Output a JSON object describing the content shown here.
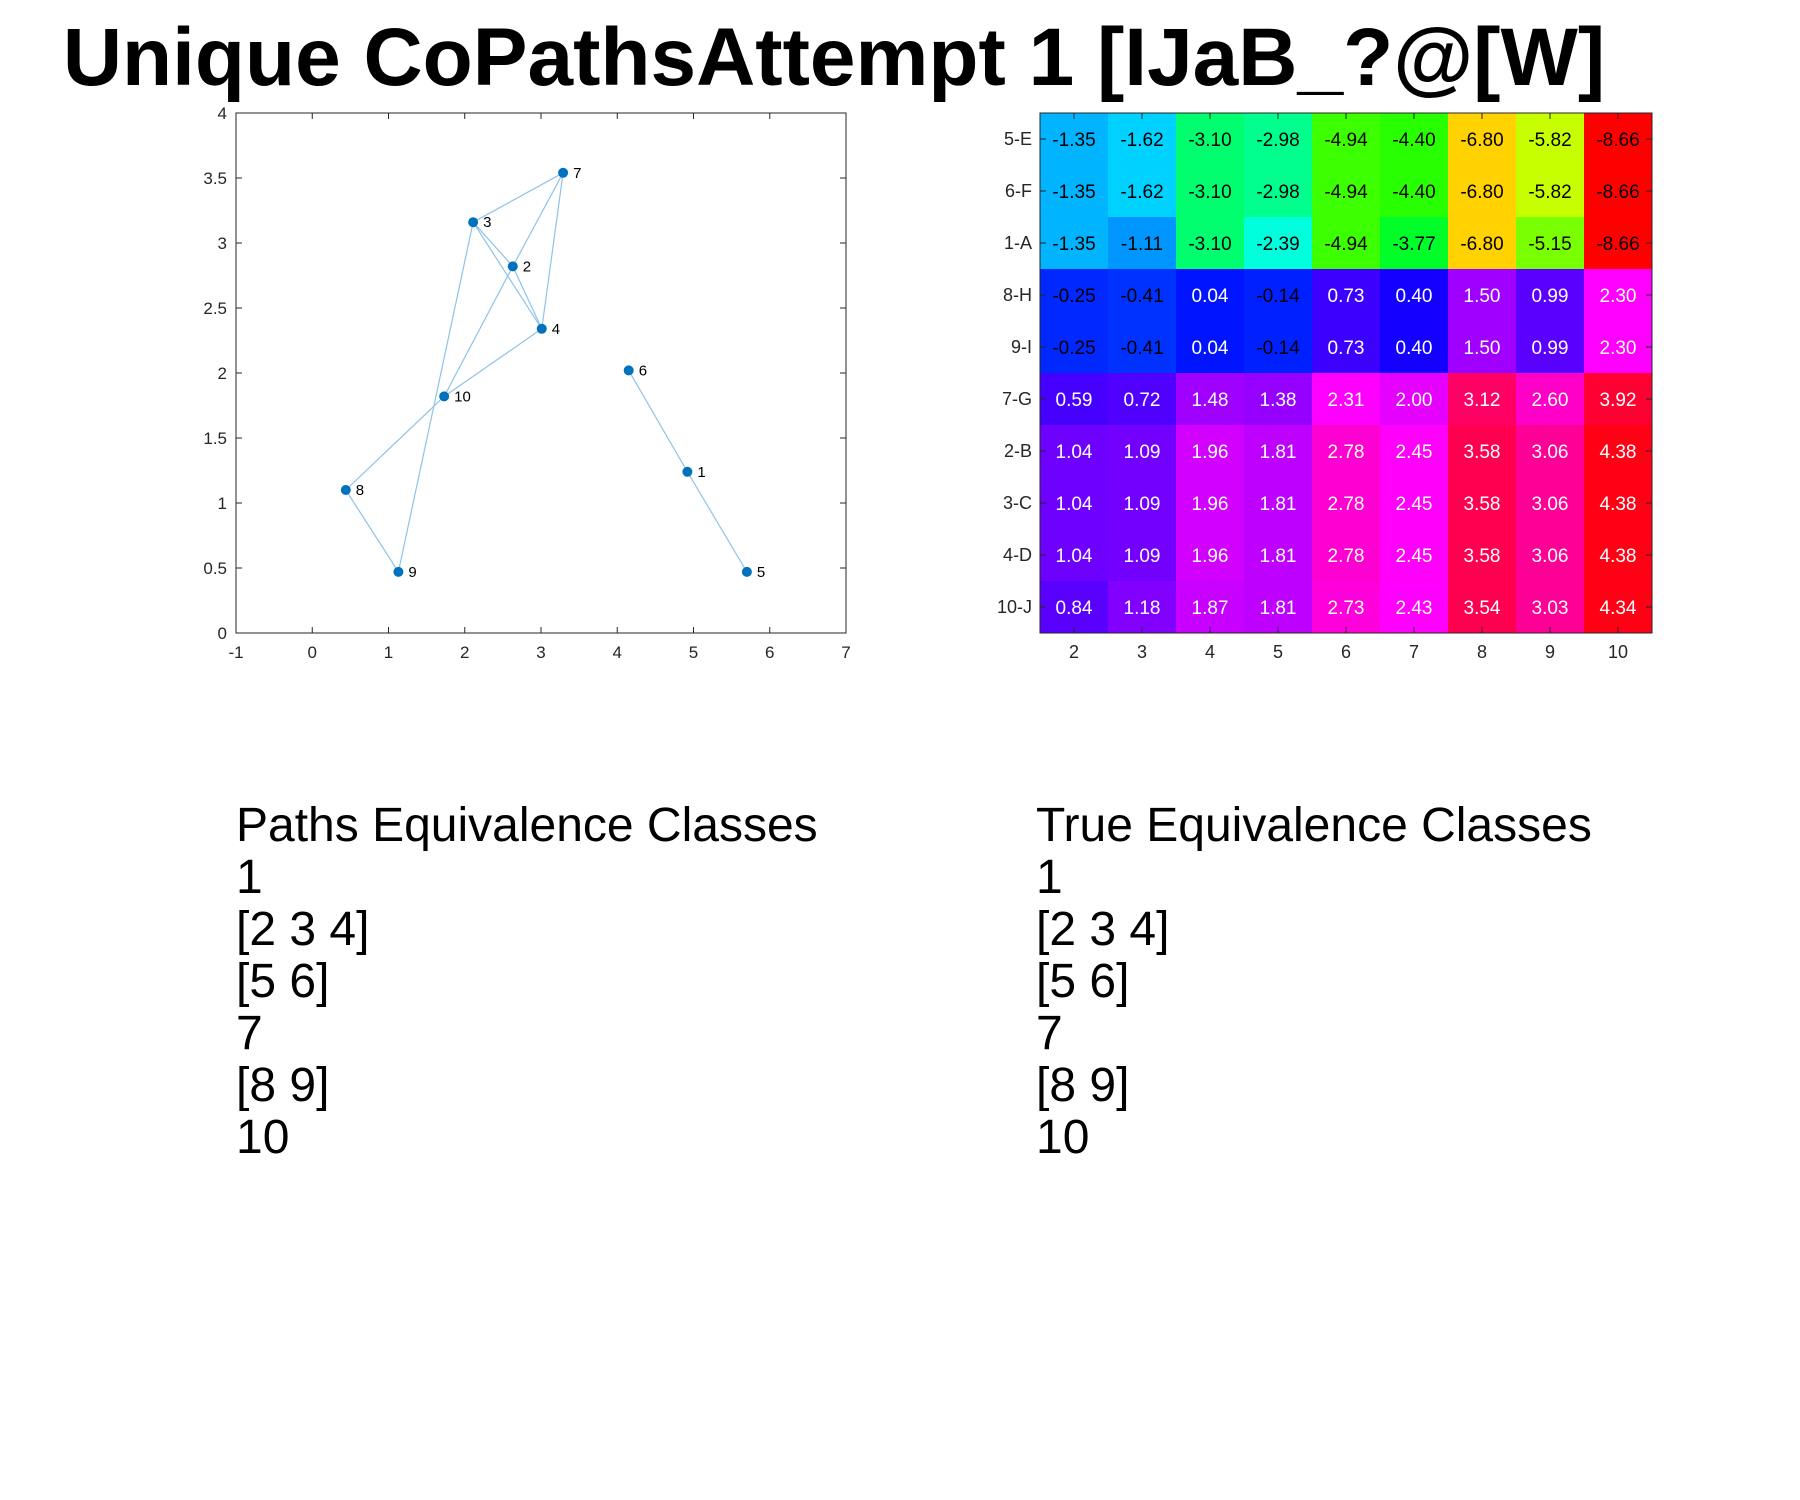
{
  "title": "Unique CoPathsAttempt 1 [IJaB_?@[W]",
  "chart_data": [
    {
      "type": "scatter",
      "xlim": [
        -1,
        7
      ],
      "ylim": [
        0,
        4
      ],
      "xticks": [
        "-1",
        "0",
        "1",
        "2",
        "3",
        "4",
        "5",
        "6",
        "7"
      ],
      "yticks": [
        "0",
        "0.5",
        "1",
        "1.5",
        "2",
        "2.5",
        "3",
        "3.5",
        "4"
      ],
      "grid": false,
      "point_color": "#0072BD",
      "edge_color": "#8EC3E8",
      "points": [
        {
          "label": "1",
          "x": 4.92,
          "y": 1.24
        },
        {
          "label": "2",
          "x": 2.63,
          "y": 2.82
        },
        {
          "label": "3",
          "x": 2.11,
          "y": 3.16
        },
        {
          "label": "4",
          "x": 3.01,
          "y": 2.34
        },
        {
          "label": "5",
          "x": 5.7,
          "y": 0.47
        },
        {
          "label": "6",
          "x": 4.15,
          "y": 2.02
        },
        {
          "label": "7",
          "x": 3.29,
          "y": 3.54
        },
        {
          "label": "8",
          "x": 0.44,
          "y": 1.1
        },
        {
          "label": "9",
          "x": 1.13,
          "y": 0.47
        },
        {
          "label": "10",
          "x": 1.73,
          "y": 1.82
        }
      ],
      "edges": [
        [
          "3",
          "7"
        ],
        [
          "3",
          "2"
        ],
        [
          "3",
          "4"
        ],
        [
          "7",
          "2"
        ],
        [
          "7",
          "4"
        ],
        [
          "2",
          "4"
        ],
        [
          "3",
          "9"
        ],
        [
          "2",
          "10"
        ],
        [
          "4",
          "10"
        ],
        [
          "10",
          "8"
        ],
        [
          "8",
          "9"
        ],
        [
          "6",
          "1"
        ],
        [
          "1",
          "5"
        ]
      ]
    },
    {
      "type": "heatmap",
      "columns": [
        "2",
        "3",
        "4",
        "5",
        "6",
        "7",
        "8",
        "9",
        "10"
      ],
      "rows": [
        "5-E",
        "6-F",
        "1-A",
        "8-H",
        "9-I",
        "7-G",
        "2-B",
        "3-C",
        "4-D",
        "10-J"
      ],
      "values": [
        [
          "-1.35",
          "-1.62",
          "-3.10",
          "-2.98",
          "-4.94",
          "-4.40",
          "-6.80",
          "-5.82",
          "-8.66"
        ],
        [
          "-1.35",
          "-1.62",
          "-3.10",
          "-2.98",
          "-4.94",
          "-4.40",
          "-6.80",
          "-5.82",
          "-8.66"
        ],
        [
          "-1.35",
          "-1.11",
          "-3.10",
          "-2.39",
          "-4.94",
          "-3.77",
          "-6.80",
          "-5.15",
          "-8.66"
        ],
        [
          "-0.25",
          "-0.41",
          "0.04",
          "-0.14",
          "0.73",
          "0.40",
          "1.50",
          "0.99",
          "2.30"
        ],
        [
          "-0.25",
          "-0.41",
          "0.04",
          "-0.14",
          "0.73",
          "0.40",
          "1.50",
          "0.99",
          "2.30"
        ],
        [
          "0.59",
          "0.72",
          "1.48",
          "1.38",
          "2.31",
          "2.00",
          "3.12",
          "2.60",
          "3.92"
        ],
        [
          "1.04",
          "1.09",
          "1.96",
          "1.81",
          "2.78",
          "2.45",
          "3.58",
          "3.06",
          "4.38"
        ],
        [
          "1.04",
          "1.09",
          "1.96",
          "1.81",
          "2.78",
          "2.45",
          "3.58",
          "3.06",
          "4.38"
        ],
        [
          "1.04",
          "1.09",
          "1.96",
          "1.81",
          "2.78",
          "2.45",
          "3.58",
          "3.06",
          "4.38"
        ],
        [
          "0.84",
          "1.18",
          "1.87",
          "1.81",
          "2.73",
          "2.43",
          "3.54",
          "3.03",
          "4.34"
        ]
      ],
      "cell_colors": [
        [
          "#00B4FF",
          "#00D2FF",
          "#00FF6E",
          "#00FF8C",
          "#3CFF00",
          "#28FF00",
          "#FFD200",
          "#C8FF00",
          "#FF0000"
        ],
        [
          "#00B4FF",
          "#00D2FF",
          "#00FF6E",
          "#00FF8C",
          "#3CFF00",
          "#28FF00",
          "#FFD200",
          "#C8FF00",
          "#FF0000"
        ],
        [
          "#00B4FF",
          "#0096FF",
          "#00FF6E",
          "#00FFDC",
          "#3CFF00",
          "#00FF28",
          "#FFD200",
          "#78FF00",
          "#FF0000"
        ],
        [
          "#0028FF",
          "#0032FF",
          "#0014FF",
          "#0020FF",
          "#3C00FF",
          "#1400FF",
          "#A000FF",
          "#5A00FF",
          "#FF00FF"
        ],
        [
          "#0028FF",
          "#0032FF",
          "#0014FF",
          "#0020FF",
          "#3C00FF",
          "#1400FF",
          "#A000FF",
          "#5A00FF",
          "#FF00FF"
        ],
        [
          "#4600FF",
          "#5000FF",
          "#A000FF",
          "#9600FF",
          "#FF00FF",
          "#E600FF",
          "#FF0064",
          "#FF00C8",
          "#FF0032"
        ],
        [
          "#6E00FF",
          "#7300FF",
          "#D200FF",
          "#BE00FF",
          "#FF00D2",
          "#FF00FA",
          "#FF0050",
          "#FF0096",
          "#FF0014"
        ],
        [
          "#6E00FF",
          "#7300FF",
          "#D200FF",
          "#BE00FF",
          "#FF00D2",
          "#FF00FA",
          "#FF0050",
          "#FF0096",
          "#FF0014"
        ],
        [
          "#6E00FF",
          "#7300FF",
          "#D200FF",
          "#BE00FF",
          "#FF00D2",
          "#FF00FA",
          "#FF0050",
          "#FF0096",
          "#FF0014"
        ],
        [
          "#5A00FF",
          "#8200FF",
          "#C800FF",
          "#BE00FF",
          "#FF00DC",
          "#FF00FF",
          "#FF0050",
          "#FF0096",
          "#FF0014"
        ]
      ],
      "dark_text_rows": [
        "5-E",
        "6-F",
        "1-A"
      ],
      "dark_text_cells": [
        [
          3,
          0
        ],
        [
          3,
          1
        ],
        [
          3,
          3
        ],
        [
          4,
          0
        ],
        [
          4,
          1
        ],
        [
          4,
          3
        ]
      ]
    }
  ],
  "paths_equivalence": {
    "header": "Paths Equivalence Classes",
    "classes": [
      "1",
      "[2 3 4]",
      "[5 6]",
      "7",
      "[8 9]",
      "10"
    ]
  },
  "true_equivalence": {
    "header": "True Equivalence Classes",
    "classes": [
      "1",
      "[2 3 4]",
      "[5 6]",
      "7",
      "[8 9]",
      "10"
    ]
  }
}
